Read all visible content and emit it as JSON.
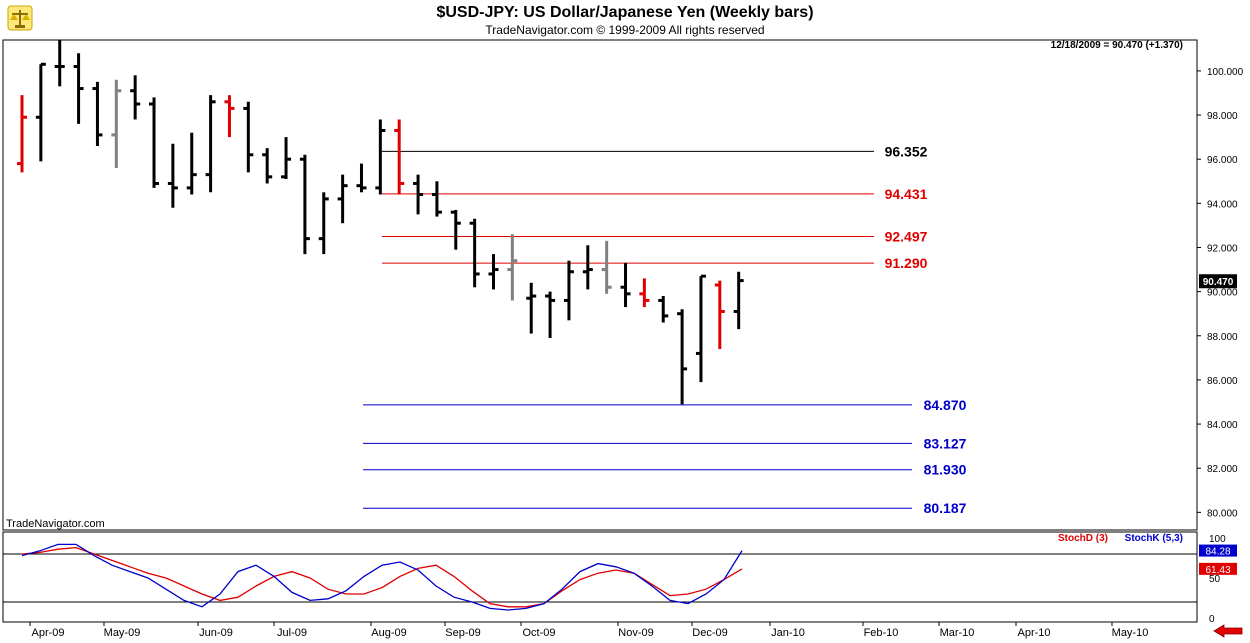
{
  "chart_data": [
    {
      "type": "ohlc",
      "title": "$USD-JPY:  US Dollar/Japanese Yen  (Weekly bars)",
      "subtitle": "TradeNavigator.com © 1999-2009 All rights reserved",
      "watermark": "TradeNavigator.com",
      "status_line": "12/18/2009 = 90.470 (+1.370)",
      "last_price": "90.470",
      "ylim": [
        79.2,
        101.4
      ],
      "y_ticks": [
        "80.000",
        "82.000",
        "84.000",
        "86.000",
        "88.000",
        "90.000",
        "92.000",
        "94.000",
        "96.000",
        "98.000",
        "100.000"
      ],
      "x_ticks": [
        "Apr-09",
        "May-09",
        "Jun-09",
        "Jul-09",
        "Aug-09",
        "Sep-09",
        "Oct-09",
        "Nov-09",
        "Dec-09",
        "Jan-10",
        "Feb-10",
        "Mar-10",
        "Apr-10",
        "May-10"
      ],
      "bar_colors": {
        "k": "#000000",
        "r": "#e00000",
        "g": "#808080"
      },
      "bars": [
        {
          "week": 0,
          "o": 95.8,
          "h": 98.9,
          "l": 95.4,
          "c": 97.9,
          "color": "r"
        },
        {
          "week": 1,
          "o": 97.9,
          "h": 100.3,
          "l": 95.9,
          "c": 100.3,
          "color": "k"
        },
        {
          "week": 2,
          "o": 100.2,
          "h": 101.4,
          "l": 99.3,
          "c": 100.2,
          "color": "k"
        },
        {
          "week": 3,
          "o": 100.2,
          "h": 100.8,
          "l": 97.6,
          "c": 99.2,
          "color": "k"
        },
        {
          "week": 4,
          "o": 99.2,
          "h": 99.5,
          "l": 96.6,
          "c": 97.1,
          "color": "k"
        },
        {
          "week": 5,
          "o": 97.1,
          "h": 99.6,
          "l": 95.6,
          "c": 99.1,
          "color": "g"
        },
        {
          "week": 6,
          "o": 99.1,
          "h": 99.8,
          "l": 97.8,
          "c": 98.5,
          "color": "k"
        },
        {
          "week": 7,
          "o": 98.5,
          "h": 98.8,
          "l": 94.7,
          "c": 94.9,
          "color": "k"
        },
        {
          "week": 8,
          "o": 94.9,
          "h": 96.7,
          "l": 93.8,
          "c": 94.7,
          "color": "k"
        },
        {
          "week": 9,
          "o": 94.7,
          "h": 97.2,
          "l": 94.4,
          "c": 95.3,
          "color": "k"
        },
        {
          "week": 10,
          "o": 95.3,
          "h": 98.9,
          "l": 94.5,
          "c": 98.6,
          "color": "k"
        },
        {
          "week": 11,
          "o": 98.6,
          "h": 98.9,
          "l": 97.0,
          "c": 98.3,
          "color": "r"
        },
        {
          "week": 12,
          "o": 98.3,
          "h": 98.6,
          "l": 95.4,
          "c": 96.2,
          "color": "k"
        },
        {
          "week": 13,
          "o": 96.2,
          "h": 96.5,
          "l": 94.9,
          "c": 95.2,
          "color": "k"
        },
        {
          "week": 14,
          "o": 95.2,
          "h": 97.0,
          "l": 95.1,
          "c": 96.0,
          "color": "k"
        },
        {
          "week": 15,
          "o": 96.0,
          "h": 96.2,
          "l": 91.7,
          "c": 92.4,
          "color": "k"
        },
        {
          "week": 16,
          "o": 92.4,
          "h": 94.5,
          "l": 91.7,
          "c": 94.2,
          "color": "k"
        },
        {
          "week": 17,
          "o": 94.2,
          "h": 95.3,
          "l": 93.1,
          "c": 94.8,
          "color": "k"
        },
        {
          "week": 18,
          "o": 94.8,
          "h": 95.8,
          "l": 94.5,
          "c": 94.7,
          "color": "k"
        },
        {
          "week": 19,
          "o": 94.7,
          "h": 97.8,
          "l": 94.4,
          "c": 97.3,
          "color": "k"
        },
        {
          "week": 20,
          "o": 97.3,
          "h": 97.8,
          "l": 94.4,
          "c": 94.9,
          "color": "r"
        },
        {
          "week": 21,
          "o": 94.9,
          "h": 95.3,
          "l": 93.5,
          "c": 94.4,
          "color": "k"
        },
        {
          "week": 22,
          "o": 94.4,
          "h": 95.0,
          "l": 93.4,
          "c": 93.6,
          "color": "k"
        },
        {
          "week": 23,
          "o": 93.6,
          "h": 93.7,
          "l": 91.9,
          "c": 93.1,
          "color": "k"
        },
        {
          "week": 24,
          "o": 93.1,
          "h": 93.3,
          "l": 90.2,
          "c": 90.8,
          "color": "k"
        },
        {
          "week": 25,
          "o": 90.8,
          "h": 91.7,
          "l": 90.1,
          "c": 91.0,
          "color": "k"
        },
        {
          "week": 26,
          "o": 91.0,
          "h": 92.6,
          "l": 89.6,
          "c": 91.4,
          "color": "g"
        },
        {
          "week": 27,
          "o": 89.7,
          "h": 90.4,
          "l": 88.1,
          "c": 89.8,
          "color": "k"
        },
        {
          "week": 28,
          "o": 89.8,
          "h": 90.0,
          "l": 87.9,
          "c": 89.6,
          "color": "k"
        },
        {
          "week": 29,
          "o": 89.6,
          "h": 91.4,
          "l": 88.7,
          "c": 90.9,
          "color": "k"
        },
        {
          "week": 30,
          "o": 90.9,
          "h": 92.1,
          "l": 90.1,
          "c": 91.0,
          "color": "k"
        },
        {
          "week": 31,
          "o": 91.0,
          "h": 92.3,
          "l": 89.9,
          "c": 90.2,
          "color": "g"
        },
        {
          "week": 32,
          "o": 90.2,
          "h": 91.3,
          "l": 89.3,
          "c": 89.9,
          "color": "k"
        },
        {
          "week": 33,
          "o": 89.9,
          "h": 90.6,
          "l": 89.3,
          "c": 89.6,
          "color": "r"
        },
        {
          "week": 34,
          "o": 89.6,
          "h": 89.8,
          "l": 88.6,
          "c": 88.9,
          "color": "k"
        },
        {
          "week": 35,
          "o": 89.0,
          "h": 89.2,
          "l": 84.9,
          "c": 86.5,
          "color": "k"
        },
        {
          "week": 36,
          "o": 87.2,
          "h": 90.7,
          "l": 85.9,
          "c": 90.7,
          "color": "k"
        },
        {
          "week": 37,
          "o": 90.3,
          "h": 90.5,
          "l": 87.4,
          "c": 89.1,
          "color": "r"
        },
        {
          "week": 38,
          "o": 89.1,
          "h": 90.9,
          "l": 88.3,
          "c": 90.5,
          "color": "k"
        }
      ],
      "levels": [
        {
          "label": "96.352",
          "value": 96.352,
          "color": "#000000"
        },
        {
          "label": "94.431",
          "value": 94.431,
          "color": "#e00000"
        },
        {
          "label": "92.497",
          "value": 92.497,
          "color": "#e00000"
        },
        {
          "label": "91.290",
          "value": 91.29,
          "color": "#e00000"
        },
        {
          "label": "84.870",
          "value": 84.87,
          "color": "#0000cc"
        },
        {
          "label": "83.127",
          "value": 83.127,
          "color": "#0000cc"
        },
        {
          "label": "81.930",
          "value": 81.93,
          "color": "#0000cc"
        },
        {
          "label": "80.187",
          "value": 80.187,
          "color": "#0000cc"
        }
      ]
    },
    {
      "type": "line",
      "indicator": "Stochastic",
      "ylim": [
        0,
        100
      ],
      "y_ticks": [
        "0",
        "50",
        "100"
      ],
      "guide_lines": [
        80,
        20
      ],
      "series": [
        {
          "name": "StochD (3)",
          "color": "#e00000",
          "last_label": "61.43",
          "values": [
            80,
            82,
            86,
            88,
            80,
            72,
            64,
            56,
            50,
            40,
            30,
            22,
            26,
            40,
            52,
            58,
            50,
            36,
            30,
            30,
            38,
            52,
            62,
            66,
            52,
            34,
            18,
            14,
            14,
            18,
            34,
            48,
            56,
            60,
            56,
            42,
            28,
            30,
            36,
            48,
            61.43
          ]
        },
        {
          "name": "StochK (5,3)",
          "color": "#0000cc",
          "last_label": "84.28",
          "values": [
            78,
            84,
            92,
            92,
            78,
            66,
            58,
            50,
            36,
            22,
            14,
            30,
            58,
            66,
            52,
            32,
            22,
            24,
            34,
            52,
            66,
            70,
            60,
            40,
            26,
            20,
            12,
            10,
            12,
            18,
            36,
            58,
            68,
            64,
            56,
            40,
            22,
            18,
            30,
            48,
            84.28
          ]
        }
      ]
    }
  ]
}
